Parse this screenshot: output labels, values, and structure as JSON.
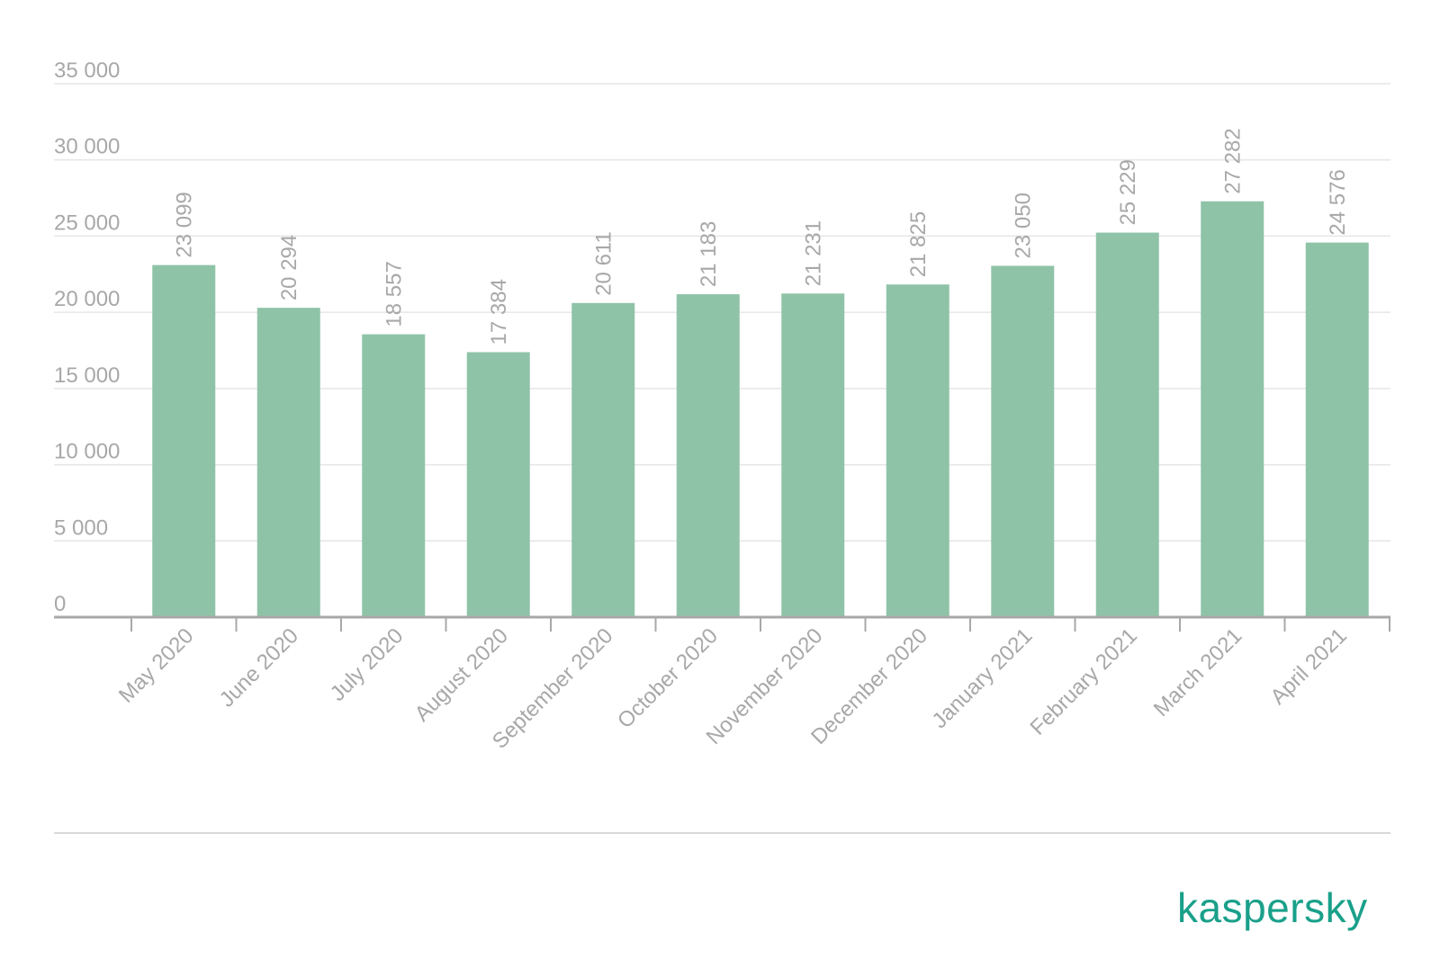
{
  "brand": {
    "name": "kaspersky",
    "color": "#1aa08a"
  },
  "colors": {
    "bar": "#8fc3a8",
    "text": "#a8a8a8",
    "grid": "#e6e6e6"
  },
  "chart_data": {
    "type": "bar",
    "title": "",
    "xlabel": "",
    "ylabel": "",
    "ylim": [
      0,
      35000
    ],
    "yticks": [
      0,
      5000,
      10000,
      15000,
      20000,
      25000,
      30000,
      35000
    ],
    "ytick_labels": [
      "0",
      "5 000",
      "10 000",
      "15 000",
      "20 000",
      "25 000",
      "30 000",
      "35 000"
    ],
    "grid": true,
    "legend": "none",
    "categories": [
      "May 2020",
      "June 2020",
      "July 2020",
      "August 2020",
      "September 2020",
      "October 2020",
      "November 2020",
      "December 2020",
      "January 2021",
      "February 2021",
      "March 2021",
      "April 2021"
    ],
    "values": [
      23099,
      20294,
      18557,
      17384,
      20611,
      21183,
      21231,
      21825,
      23050,
      25229,
      27282,
      24576
    ],
    "data_labels": [
      "23 099",
      "20 294",
      "18 557",
      "17 384",
      "20 611",
      "21 183",
      "21 231",
      "21 825",
      "23 050",
      "25 229",
      "27 282",
      "24 576"
    ]
  }
}
